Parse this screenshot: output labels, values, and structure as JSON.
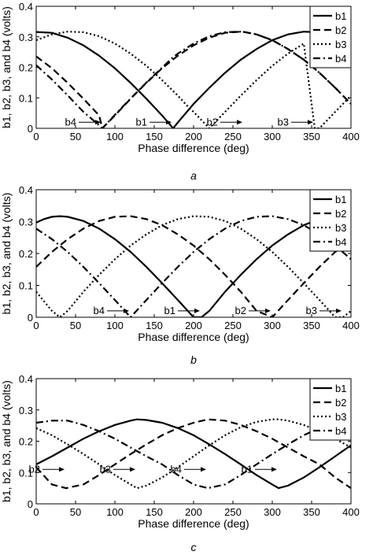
{
  "chart_data": [
    {
      "type": "line",
      "panel_label": "a",
      "xlabel": "Phase difference (deg)",
      "ylabel": "b1, b2, b3, and b4 (volts)",
      "xlim": [
        0,
        400
      ],
      "ylim": [
        0,
        0.4
      ],
      "xticks": [
        0,
        50,
        100,
        150,
        200,
        250,
        300,
        350,
        400
      ],
      "yticks": [
        0,
        0.1,
        0.2,
        0.3,
        0.4
      ],
      "ytick_labels": [
        "0",
        "0.1",
        "0.2",
        "0.3",
        "0.4"
      ],
      "legend": "top-right",
      "series": [
        {
          "name": "b1",
          "style": "solid",
          "x": [
            0,
            20,
            40,
            60,
            80,
            100,
            120,
            140,
            160,
            174,
            180,
            200,
            220,
            240,
            260,
            280,
            300,
            320,
            340,
            354,
            360,
            380,
            400
          ],
          "values": [
            0.316,
            0.313,
            0.297,
            0.272,
            0.238,
            0.197,
            0.149,
            0.097,
            0.042,
            0.0,
            0.019,
            0.08,
            0.133,
            0.182,
            0.225,
            0.26,
            0.289,
            0.308,
            0.317,
            0.315,
            0.313,
            0.297,
            0.272
          ]
        },
        {
          "name": "b2",
          "style": "dashed",
          "x": [
            0,
            20,
            40,
            60,
            80,
            84,
            100,
            120,
            140,
            160,
            180,
            200,
            220,
            240,
            260,
            264,
            280,
            300,
            320,
            340,
            360,
            380,
            400
          ],
          "values": [
            0.236,
            0.197,
            0.149,
            0.097,
            0.042,
            0.0,
            0.042,
            0.097,
            0.149,
            0.197,
            0.238,
            0.272,
            0.297,
            0.313,
            0.317,
            0.316,
            0.308,
            0.289,
            0.26,
            0.225,
            0.182,
            0.133,
            0.08
          ]
        },
        {
          "name": "b3",
          "style": "dotted",
          "x": [
            0,
            20,
            40,
            60,
            80,
            100,
            120,
            140,
            160,
            180,
            194,
            200,
            220,
            240,
            260,
            280,
            300,
            320,
            340,
            354,
            360,
            380,
            400
          ],
          "values": [
            0.289,
            0.308,
            0.317,
            0.315,
            0.302,
            0.278,
            0.245,
            0.205,
            0.158,
            0.107,
            0.068,
            0.054,
            0.0,
            0.054,
            0.107,
            0.158,
            0.205,
            0.245,
            0.278,
            0.0,
            0.0,
            0.054,
            0.107
          ]
        },
        {
          "name": "b4",
          "style": "dashdot",
          "x": [
            0,
            20,
            40,
            60,
            80,
            84,
            100,
            120,
            140,
            160,
            174,
            180,
            200,
            220,
            240,
            260,
            264,
            280,
            300,
            320,
            340,
            354,
            360,
            380,
            400
          ],
          "values": [
            0.207,
            0.16,
            0.108,
            0.054,
            0.01,
            0.0,
            0.044,
            0.098,
            0.15,
            0.199,
            0.233,
            0.245,
            0.278,
            0.302,
            0.315,
            0.317,
            0.316,
            0.308,
            0.289,
            0.26,
            0.225,
            0.196,
            0.182,
            0.133,
            0.08
          ]
        }
      ],
      "annotations": [
        {
          "text": "b4",
          "points_to": [
            84,
            0.02
          ]
        },
        {
          "text": "b1",
          "points_to": [
            174,
            0.02
          ]
        },
        {
          "text": "b2",
          "points_to": [
            264,
            0.02
          ]
        },
        {
          "text": "b3",
          "points_to": [
            354,
            0.02
          ]
        }
      ]
    },
    {
      "type": "line",
      "panel_label": "b",
      "xlabel": "Phase difference (deg)",
      "ylabel": "b1, b2, b3, and b4 (volts)",
      "xlim": [
        0,
        400
      ],
      "ylim": [
        0,
        0.4
      ],
      "xticks": [
        0,
        50,
        100,
        150,
        200,
        250,
        300,
        350,
        400
      ],
      "yticks": [
        0,
        0.1,
        0.2,
        0.3,
        0.4
      ],
      "ytick_labels": [
        "0",
        "0.1",
        "0.2",
        "0.3",
        "0.4"
      ],
      "legend": "top-right",
      "series": [
        {
          "name": "b1",
          "style": "solid",
          "x": [
            0,
            10,
            20,
            30,
            40,
            60,
            80,
            100,
            120,
            140,
            160,
            180,
            200,
            210,
            220,
            240,
            260,
            280,
            300,
            320,
            340,
            360,
            380,
            400
          ],
          "values": [
            0.297,
            0.308,
            0.315,
            0.317,
            0.315,
            0.302,
            0.278,
            0.245,
            0.205,
            0.158,
            0.107,
            0.054,
            0.0,
            0.0,
            0.02,
            0.08,
            0.133,
            0.182,
            0.225,
            0.26,
            0.289,
            0.308,
            0.317,
            0.315
          ]
        },
        {
          "name": "b2",
          "style": "dashed",
          "x": [
            0,
            20,
            40,
            60,
            80,
            100,
            120,
            140,
            160,
            180,
            200,
            220,
            240,
            260,
            280,
            300,
            320,
            340,
            360,
            380,
            400
          ],
          "values": [
            0.158,
            0.205,
            0.245,
            0.278,
            0.302,
            0.315,
            0.317,
            0.308,
            0.289,
            0.26,
            0.225,
            0.182,
            0.133,
            0.08,
            0.02,
            0.0,
            0.054,
            0.107,
            0.158,
            0.205,
            0.245
          ]
        },
        {
          "name": "b3",
          "style": "dotted",
          "x": [
            0,
            20,
            30,
            40,
            60,
            80,
            100,
            120,
            140,
            160,
            180,
            200,
            220,
            240,
            260,
            280,
            300,
            320,
            340,
            360,
            380,
            390,
            400
          ],
          "values": [
            0.08,
            0.02,
            0.0,
            0.02,
            0.08,
            0.133,
            0.182,
            0.225,
            0.26,
            0.289,
            0.308,
            0.317,
            0.315,
            0.302,
            0.278,
            0.245,
            0.205,
            0.158,
            0.107,
            0.054,
            0.0,
            0.0,
            0.02
          ]
        },
        {
          "name": "b4",
          "style": "dashdot",
          "x": [
            0,
            20,
            40,
            60,
            80,
            100,
            120,
            140,
            160,
            180,
            200,
            220,
            240,
            260,
            280,
            300,
            320,
            340,
            360,
            380,
            400
          ],
          "values": [
            0.278,
            0.245,
            0.205,
            0.158,
            0.107,
            0.054,
            0.0,
            0.054,
            0.107,
            0.158,
            0.205,
            0.245,
            0.278,
            0.302,
            0.315,
            0.317,
            0.308,
            0.289,
            0.26,
            0.225,
            0.182
          ]
        }
      ],
      "annotations": [
        {
          "text": "b4",
          "points_to": [
            120,
            0.02
          ]
        },
        {
          "text": "b1",
          "points_to": [
            210,
            0.02
          ]
        },
        {
          "text": "b2",
          "points_to": [
            300,
            0.02
          ]
        },
        {
          "text": "b3",
          "points_to": [
            390,
            0.02
          ]
        }
      ]
    },
    {
      "type": "line",
      "panel_label": "c",
      "xlabel": "Phase difference (deg)",
      "ylabel": "b1, b2, b3, and b4 (volts)",
      "xlim": [
        0,
        400
      ],
      "ylim": [
        0,
        0.4
      ],
      "xticks": [
        0,
        50,
        100,
        150,
        200,
        250,
        300,
        350,
        400
      ],
      "yticks": [
        0,
        0.1,
        0.2,
        0.3,
        0.4
      ],
      "ytick_labels": [
        "0",
        "0.1",
        "0.2",
        "0.3",
        "0.4"
      ],
      "legend": "top-right",
      "series": [
        {
          "name": "b1",
          "style": "solid",
          "x": [
            0,
            20,
            40,
            60,
            80,
            100,
            120,
            128,
            140,
            160,
            180,
            200,
            220,
            240,
            260,
            280,
            300,
            308,
            320,
            340,
            360,
            380,
            400
          ],
          "values": [
            0.126,
            0.152,
            0.18,
            0.208,
            0.232,
            0.252,
            0.266,
            0.27,
            0.268,
            0.259,
            0.242,
            0.219,
            0.19,
            0.159,
            0.126,
            0.092,
            0.062,
            0.05,
            0.058,
            0.084,
            0.117,
            0.152,
            0.187
          ]
        },
        {
          "name": "b2",
          "style": "dashed",
          "x": [
            0,
            20,
            38,
            60,
            80,
            100,
            120,
            140,
            160,
            180,
            200,
            218,
            240,
            260,
            280,
            300,
            320,
            340,
            360,
            380,
            400
          ],
          "values": [
            0.117,
            0.062,
            0.05,
            0.062,
            0.092,
            0.126,
            0.159,
            0.19,
            0.219,
            0.242,
            0.259,
            0.27,
            0.266,
            0.252,
            0.232,
            0.208,
            0.18,
            0.152,
            0.126,
            0.084,
            0.05
          ]
        },
        {
          "name": "b3",
          "style": "dotted",
          "x": [
            0,
            20,
            40,
            60,
            80,
            100,
            120,
            128,
            140,
            160,
            180,
            200,
            220,
            240,
            260,
            280,
            300,
            308,
            320,
            340,
            360,
            380,
            400
          ],
          "values": [
            0.242,
            0.219,
            0.19,
            0.159,
            0.126,
            0.092,
            0.062,
            0.05,
            0.058,
            0.084,
            0.117,
            0.152,
            0.187,
            0.219,
            0.245,
            0.262,
            0.27,
            0.27,
            0.266,
            0.252,
            0.232,
            0.208,
            0.18
          ]
        },
        {
          "name": "b4",
          "style": "dashdot",
          "x": [
            0,
            20,
            40,
            60,
            80,
            100,
            120,
            140,
            160,
            180,
            200,
            218,
            240,
            260,
            280,
            300,
            320,
            340,
            360,
            380,
            398,
            400
          ],
          "values": [
            0.259,
            0.266,
            0.266,
            0.252,
            0.232,
            0.208,
            0.18,
            0.152,
            0.126,
            0.092,
            0.062,
            0.05,
            0.062,
            0.092,
            0.126,
            0.159,
            0.19,
            0.219,
            0.242,
            0.259,
            0.27,
            0.27
          ]
        }
      ],
      "annotations": [
        {
          "text": "b2",
          "points_to": [
            38,
            0.11
          ]
        },
        {
          "text": "b3",
          "points_to": [
            128,
            0.11
          ]
        },
        {
          "text": "b4",
          "points_to": [
            218,
            0.11
          ]
        },
        {
          "text": "b1",
          "points_to": [
            308,
            0.11
          ]
        }
      ]
    }
  ]
}
